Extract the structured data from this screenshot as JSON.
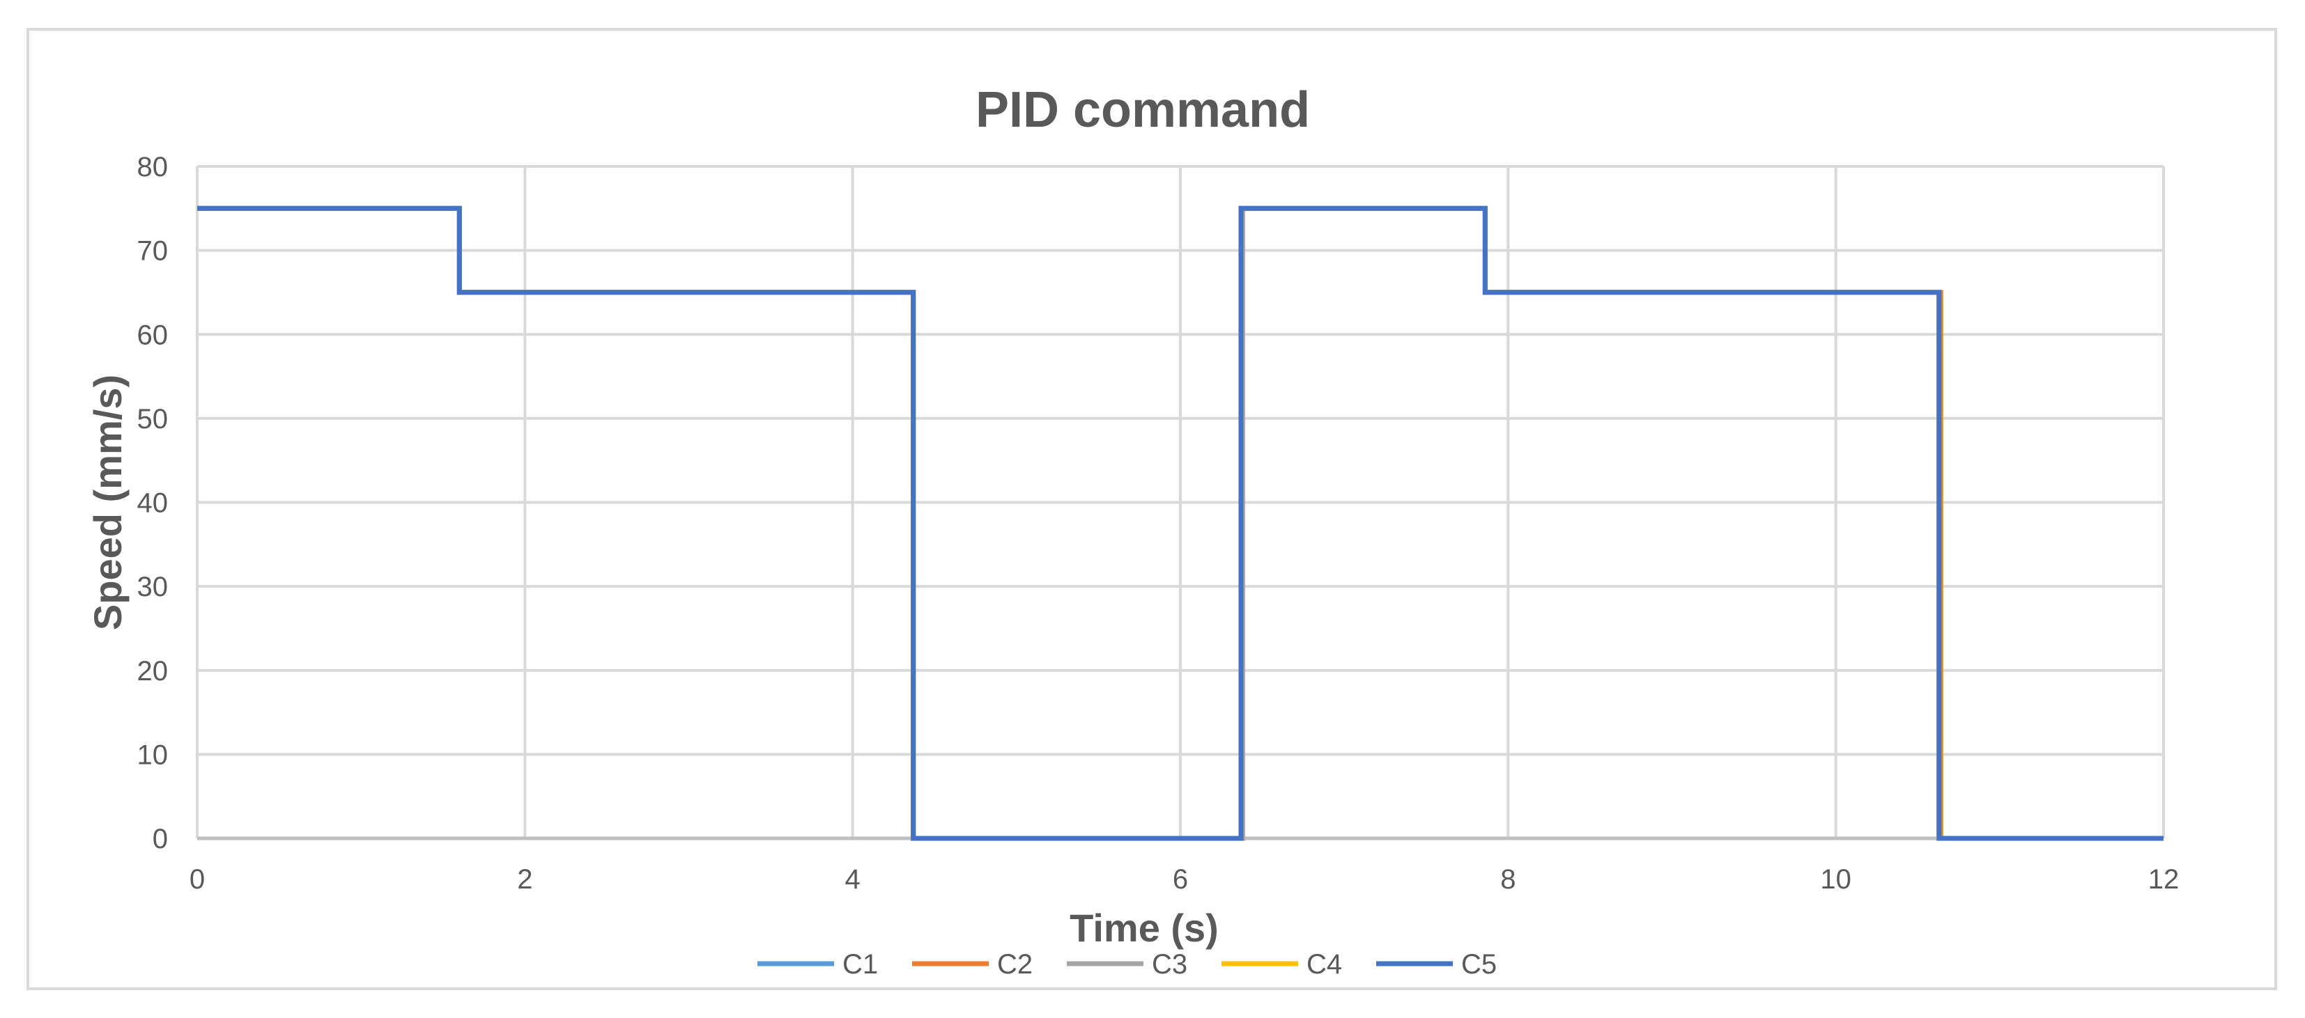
{
  "chart_data": {
    "type": "line",
    "title": "PID command",
    "xlabel": "Time (s)",
    "ylabel": "Speed (mm/s)",
    "xlim": [
      0,
      12
    ],
    "ylim": [
      0,
      80
    ],
    "xticks": [
      0,
      2,
      4,
      6,
      8,
      10,
      12
    ],
    "yticks": [
      0,
      10,
      20,
      30,
      40,
      50,
      60,
      70,
      80
    ],
    "grid": true,
    "legend": "bottom",
    "series": [
      {
        "name": "C1",
        "color": "#5B9BD5",
        "x": [
          0,
          1.6,
          1.6,
          4.37,
          4.37,
          6.37,
          6.37,
          7.86,
          7.86,
          10.63,
          10.63,
          12
        ],
        "y": [
          75,
          75,
          65,
          65,
          0,
          0,
          75,
          75,
          65,
          65,
          0,
          0
        ]
      },
      {
        "name": "C2",
        "color": "#ED7D31",
        "x": [
          0,
          1.6,
          1.6,
          4.37,
          4.37,
          6.37,
          6.37,
          7.86,
          7.86,
          10.64,
          10.64,
          12
        ],
        "y": [
          75,
          75,
          65,
          65,
          0,
          0,
          75,
          75,
          65,
          65,
          0,
          0
        ]
      },
      {
        "name": "C3",
        "color": "#A5A5A5",
        "x": [
          0,
          1.6,
          1.6,
          4.37,
          4.37,
          6.38,
          6.38,
          7.86,
          7.86,
          10.63,
          10.63,
          12
        ],
        "y": [
          75,
          75,
          65,
          65,
          0,
          0,
          75,
          75,
          65,
          65,
          0,
          0
        ]
      },
      {
        "name": "C4",
        "color": "#FFC000",
        "x": [
          0,
          1.6,
          1.6,
          4.37,
          4.37,
          6.37,
          6.37,
          7.86,
          7.86,
          10.63,
          10.63,
          12
        ],
        "y": [
          75,
          75,
          65,
          65,
          0,
          0,
          75,
          75,
          65,
          65,
          0,
          0
        ]
      },
      {
        "name": "C5",
        "color": "#4472C4",
        "x": [
          0,
          1.6,
          1.6,
          4.37,
          4.37,
          6.37,
          6.37,
          7.86,
          7.86,
          10.63,
          10.63,
          12
        ],
        "y": [
          75,
          75,
          65,
          65,
          0,
          0,
          75,
          75,
          65,
          65,
          0,
          0
        ]
      }
    ]
  }
}
